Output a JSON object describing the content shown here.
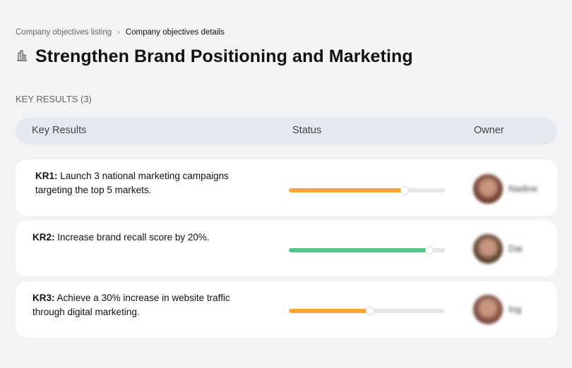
{
  "breadcrumb": {
    "parent": "Company objectives listing",
    "separator": "›",
    "current": "Company objectives details"
  },
  "title": "Strengthen Brand Positioning and Marketing",
  "section_label": "KEY RESULTS (3)",
  "table": {
    "headers": [
      "Key Results",
      "Status",
      "Owner"
    ]
  },
  "key_results": [
    {
      "id": "KR1:",
      "text": "Launch 3 national marketing campaigns targeting the top 5 markets.",
      "progress": 74,
      "color": "#ffa630",
      "owner": "Nadine",
      "avatar_color": "#6b3a2a"
    },
    {
      "id": "KR2:",
      "text": "Increase brand recall score by 20%.",
      "progress": 90,
      "color": "#56c58a",
      "owner": "Dai",
      "avatar_color": "#5a4030"
    },
    {
      "id": "KR3:",
      "text": "Achieve a 30% increase in website traffic through digital marketing.",
      "progress": 52,
      "color": "#ffa630",
      "owner": "Ing",
      "avatar_color": "#7a4a3e"
    }
  ]
}
